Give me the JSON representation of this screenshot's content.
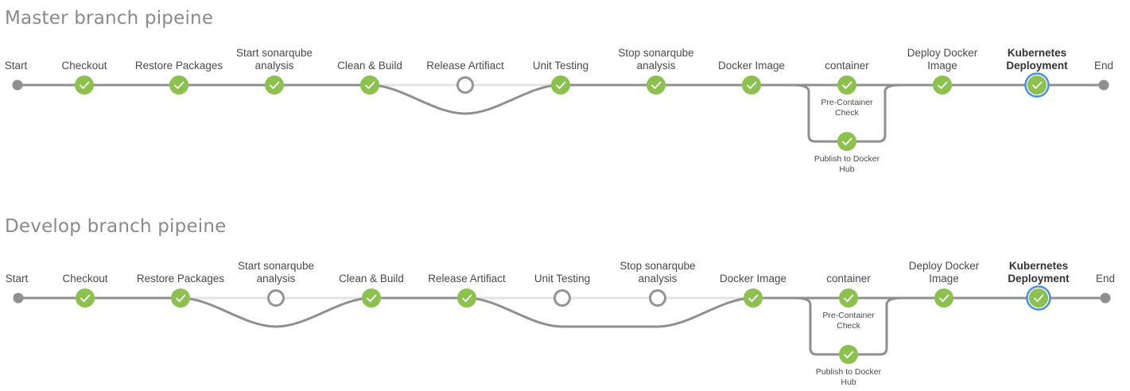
{
  "pipelines": [
    {
      "title": "Master branch pipeine",
      "start_label": "Start",
      "end_label": "End",
      "stages": [
        {
          "label": [
            "Checkout"
          ],
          "status": "success"
        },
        {
          "label": [
            "Restore Packages"
          ],
          "status": "success"
        },
        {
          "label": [
            "Start sonarqube",
            "analysis"
          ],
          "status": "success"
        },
        {
          "label": [
            "Clean & Build"
          ],
          "status": "success"
        },
        {
          "label": [
            "Release Artifiact"
          ],
          "status": "skipped"
        },
        {
          "label": [
            "Unit Testing"
          ],
          "status": "success"
        },
        {
          "label": [
            "Stop sonarqube",
            "analysis"
          ],
          "status": "success"
        },
        {
          "label": [
            "Docker Image"
          ],
          "status": "success"
        },
        {
          "label": [
            "container"
          ],
          "status": "success",
          "parallel": [
            {
              "label": [
                "Pre-Container",
                "Check"
              ],
              "status": "success"
            },
            {
              "label": [
                "Publish to Docker",
                "Hub"
              ],
              "status": "success"
            }
          ]
        },
        {
          "label": [
            "Deploy Docker",
            "Image"
          ],
          "status": "success"
        },
        {
          "label": [
            "Kubernetes",
            "Deployment"
          ],
          "status": "success",
          "selected": true
        }
      ]
    },
    {
      "title": "Develop branch pipeine",
      "start_label": "Start",
      "end_label": "End",
      "stages": [
        {
          "label": [
            "Checkout"
          ],
          "status": "success"
        },
        {
          "label": [
            "Restore Packages"
          ],
          "status": "success"
        },
        {
          "label": [
            "Start sonarqube",
            "analysis"
          ],
          "status": "skipped"
        },
        {
          "label": [
            "Clean & Build"
          ],
          "status": "success"
        },
        {
          "label": [
            "Release Artifiact"
          ],
          "status": "success"
        },
        {
          "label": [
            "Unit Testing"
          ],
          "status": "skipped"
        },
        {
          "label": [
            "Stop sonarqube",
            "analysis"
          ],
          "status": "skipped"
        },
        {
          "label": [
            "Docker Image"
          ],
          "status": "success"
        },
        {
          "label": [
            "container"
          ],
          "status": "success",
          "parallel": [
            {
              "label": [
                "Pre-Container",
                "Check"
              ],
              "status": "success"
            },
            {
              "label": [
                "Publish to Docker",
                "Hub"
              ],
              "status": "success"
            }
          ]
        },
        {
          "label": [
            "Deploy Docker",
            "Image"
          ],
          "status": "success"
        },
        {
          "label": [
            "Kubernetes",
            "Deployment"
          ],
          "status": "success",
          "selected": true
        }
      ]
    }
  ],
  "colors": {
    "success": "#8cc04f",
    "skipped_ring": "#949494",
    "track": "#8f8f8f",
    "skip_track": "#e3e3e3",
    "selected_ring": "#4a90d9",
    "endpoint": "#8f8f8f"
  },
  "icons": {
    "success": "checkmark-icon",
    "skipped": "skipped-circle-icon"
  }
}
